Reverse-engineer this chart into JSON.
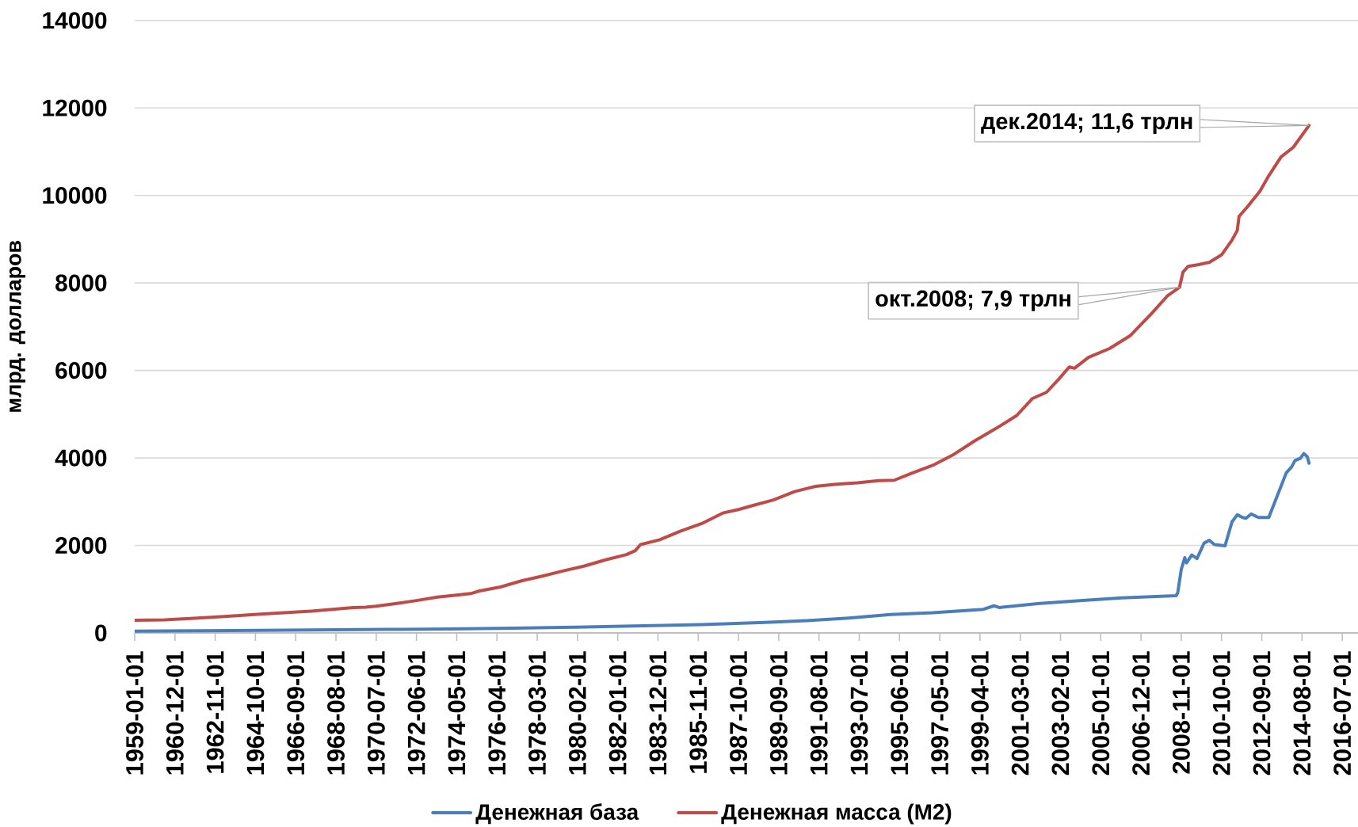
{
  "chart_data": {
    "type": "line",
    "ylabel": "млрд. долларов",
    "xlim": [
      "1959-01-01",
      "2017-04-01"
    ],
    "xticks": [
      "1959-01-01",
      "1960-12-01",
      "1962-11-01",
      "1964-10-01",
      "1966-09-01",
      "1968-08-01",
      "1970-07-01",
      "1972-06-01",
      "1974-05-01",
      "1976-04-01",
      "1978-03-01",
      "1980-02-01",
      "1982-01-01",
      "1983-12-01",
      "1985-11-01",
      "1987-10-01",
      "1989-09-01",
      "1991-08-01",
      "1993-07-01",
      "1995-06-01",
      "1997-05-01",
      "1999-04-01",
      "2001-03-01",
      "2003-02-01",
      "2005-01-01",
      "2006-12-01",
      "2008-11-01",
      "2010-10-01",
      "2012-09-01",
      "2014-08-01",
      "2016-07-01"
    ],
    "ylim": [
      0,
      14000
    ],
    "yticks": [
      0,
      2000,
      4000,
      6000,
      8000,
      10000,
      12000,
      14000
    ],
    "grid": "y",
    "legend": "bottom",
    "line_style": "solid",
    "annotations": [
      {
        "text": "дек.2014; 11,6 трлн",
        "x": "2014-12",
        "y": 11600
      },
      {
        "text": "окт.2008; 7,9 трлн",
        "x": "2008-10",
        "y": 7900
      }
    ],
    "series": [
      {
        "name": "Денежная база",
        "color": "#4a7ebb",
        "x": [
          "1959-01",
          "1962-01",
          "1965-01",
          "1968-01",
          "1971-01",
          "1974-01",
          "1977-01",
          "1980-01",
          "1983-01",
          "1986-01",
          "1989-01",
          "1991-01",
          "1993-01",
          "1995-01",
          "1997-01",
          "1999-06",
          "1999-12",
          "2000-03",
          "2002-01",
          "2004-01",
          "2006-01",
          "2008-08",
          "2008-09",
          "2008-11",
          "2009-01",
          "2009-02",
          "2009-05",
          "2009-08",
          "2009-12",
          "2010-03",
          "2010-06",
          "2010-12",
          "2011-04",
          "2011-07",
          "2011-10",
          "2011-12",
          "2012-03",
          "2012-07",
          "2013-01",
          "2013-11",
          "2014-02",
          "2014-04",
          "2014-07",
          "2014-09",
          "2014-11",
          "2014-12"
        ],
        "values": [
          40,
          50,
          60,
          70,
          80,
          90,
          110,
          130,
          160,
          190,
          240,
          280,
          340,
          420,
          460,
          540,
          620,
          580,
          670,
          740,
          800,
          850,
          920,
          1450,
          1720,
          1600,
          1780,
          1700,
          2050,
          2120,
          2020,
          1990,
          2540,
          2700,
          2640,
          2620,
          2720,
          2640,
          2640,
          3660,
          3790,
          3940,
          3990,
          4100,
          4030,
          3880
        ]
      },
      {
        "name": "Денежная масса (M2)",
        "color": "#be4b48",
        "x": [
          "1959-01",
          "1960-06",
          "1962-01",
          "1963-06",
          "1965-01",
          "1966-06",
          "1967-06",
          "1968-06",
          "1969-06",
          "1970-01",
          "1970-07",
          "1971-06",
          "1972-06",
          "1973-06",
          "1974-06",
          "1975-01",
          "1975-06",
          "1976-06",
          "1977-06",
          "1978-06",
          "1979-06",
          "1980-06",
          "1981-06",
          "1982-06",
          "1982-11",
          "1983-02",
          "1984-01",
          "1985-01",
          "1986-01",
          "1987-01",
          "1987-10",
          "1988-06",
          "1989-06",
          "1990-06",
          "1991-06",
          "1992-06",
          "1993-06",
          "1994-06",
          "1995-03",
          "1996-01",
          "1997-01",
          "1998-01",
          "1999-01",
          "2000-01",
          "2001-01",
          "2001-10",
          "2002-06",
          "2003-01",
          "2003-07",
          "2003-10",
          "2004-06",
          "2005-06",
          "2006-06",
          "2007-06",
          "2008-03",
          "2008-10",
          "2008-12",
          "2009-03",
          "2009-09",
          "2010-03",
          "2010-10",
          "2011-04",
          "2011-07",
          "2011-08",
          "2012-01",
          "2012-08",
          "2013-01",
          "2013-08",
          "2014-03",
          "2014-12"
        ],
        "values": [
          290,
          300,
          340,
          380,
          430,
          470,
          500,
          540,
          580,
          590,
          610,
          670,
          740,
          820,
          870,
          900,
          960,
          1050,
          1190,
          1300,
          1420,
          1530,
          1670,
          1790,
          1880,
          2020,
          2130,
          2330,
          2500,
          2740,
          2820,
          2910,
          3040,
          3230,
          3350,
          3400,
          3430,
          3480,
          3490,
          3650,
          3830,
          4080,
          4390,
          4670,
          4970,
          5360,
          5500,
          5800,
          6080,
          6050,
          6300,
          6500,
          6800,
          7300,
          7700,
          7900,
          8250,
          8380,
          8420,
          8470,
          8640,
          8980,
          9200,
          9520,
          9750,
          10100,
          10450,
          10880,
          11100,
          11600
        ]
      }
    ]
  }
}
